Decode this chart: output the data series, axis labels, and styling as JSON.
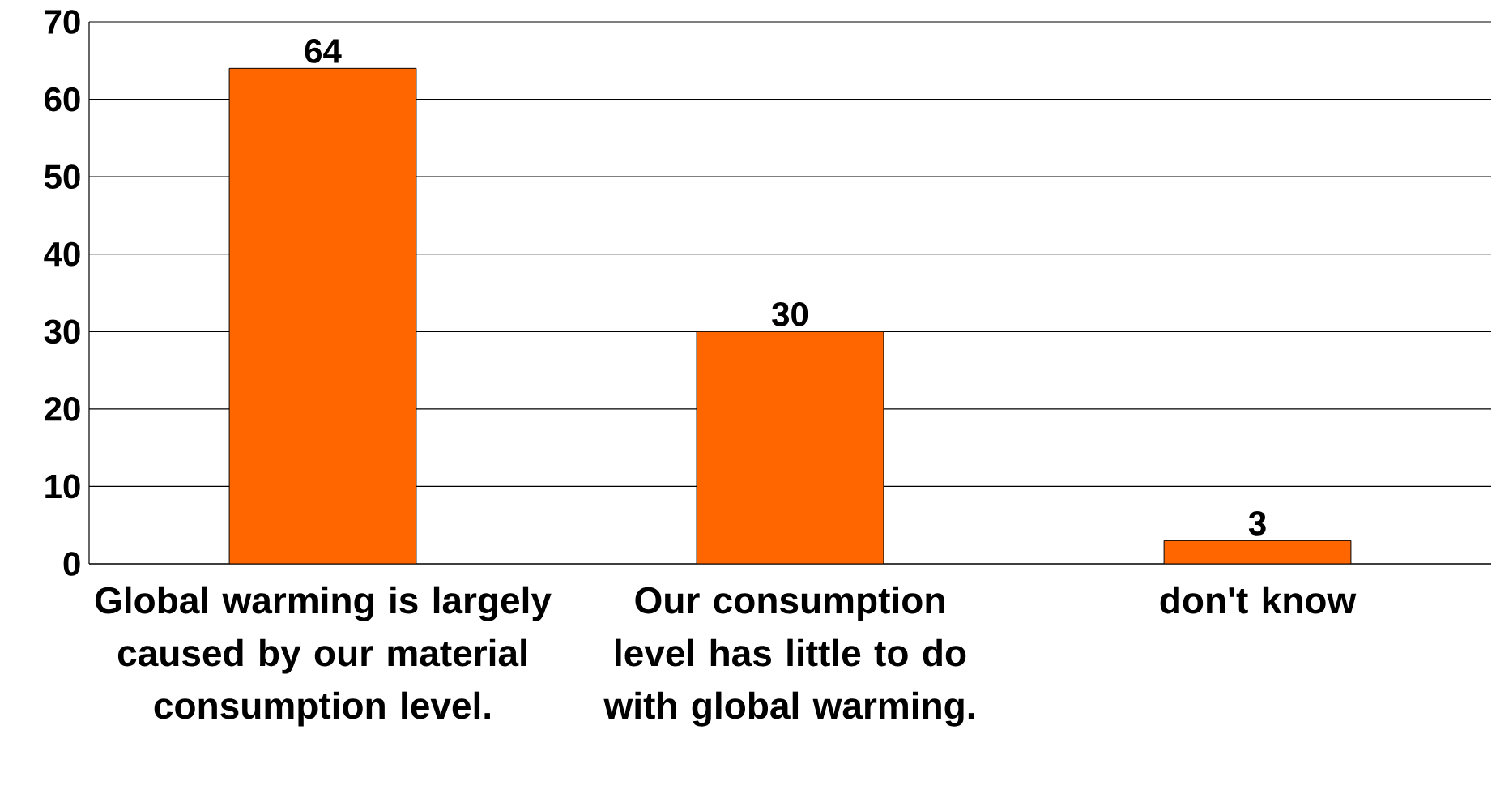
{
  "chart_data": {
    "type": "bar",
    "categories": [
      "Global warming is largely caused by our material consumption level.",
      "Our consumption level has little to do with global warming.",
      "don't know"
    ],
    "values": [
      64,
      30,
      3
    ],
    "color": "#ff6600",
    "ylim": [
      0,
      70
    ],
    "yticks": [
      0,
      10,
      20,
      30,
      40,
      50,
      60,
      70
    ],
    "grid": "y",
    "data_labels": true
  }
}
